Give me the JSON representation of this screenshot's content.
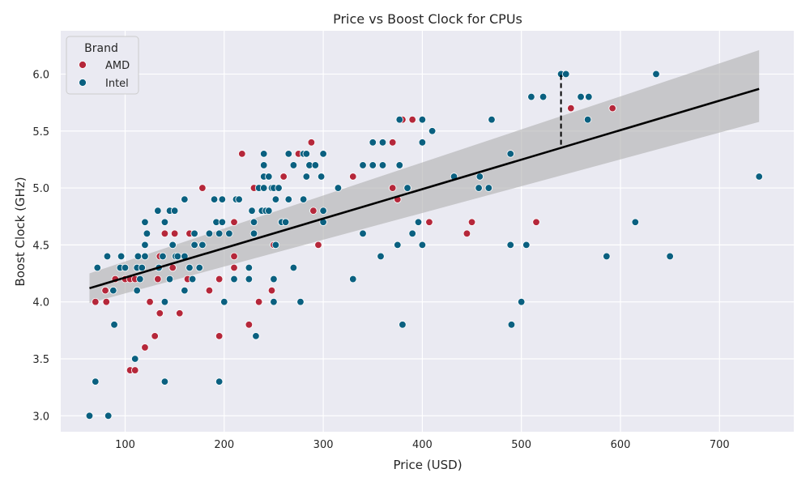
{
  "chart_data": {
    "type": "scatter",
    "title": "Price vs Boost Clock for CPUs",
    "xlabel": "Price (USD)",
    "ylabel": "Boost Clock (GHz)",
    "xlim": [
      35,
      775
    ],
    "ylim": [
      2.86,
      6.38
    ],
    "xticks": [
      100,
      200,
      300,
      400,
      500,
      600,
      700
    ],
    "yticks": [
      3.0,
      3.5,
      4.0,
      4.5,
      5.0,
      5.5,
      6.0
    ],
    "grid": true,
    "legend": {
      "title": "Brand",
      "position": "top-left"
    },
    "colors": {
      "AMD": "#b5273a",
      "Intel": "#0a6080",
      "fit": "#000000",
      "band": "#b3b3b3",
      "background": "#eaeaf2"
    },
    "series": [
      {
        "name": "AMD",
        "points": [
          [
            70,
            4.0
          ],
          [
            80,
            4.1
          ],
          [
            81,
            4.0
          ],
          [
            90,
            4.2
          ],
          [
            100,
            4.2
          ],
          [
            105,
            4.2
          ],
          [
            105,
            3.4
          ],
          [
            110,
            3.4
          ],
          [
            110,
            4.2
          ],
          [
            120,
            3.6
          ],
          [
            120,
            4.4
          ],
          [
            125,
            4.0
          ],
          [
            130,
            3.7
          ],
          [
            133,
            4.2
          ],
          [
            135,
            4.4
          ],
          [
            138,
            4.4
          ],
          [
            140,
            4.6
          ],
          [
            148,
            4.3
          ],
          [
            150,
            4.6
          ],
          [
            155,
            3.9
          ],
          [
            163,
            4.2
          ],
          [
            165,
            4.6
          ],
          [
            170,
            4.6
          ],
          [
            178,
            5.0
          ],
          [
            185,
            4.1
          ],
          [
            195,
            4.2
          ],
          [
            195,
            3.7
          ],
          [
            210,
            4.3
          ],
          [
            210,
            4.4
          ],
          [
            210,
            4.7
          ],
          [
            218,
            5.3
          ],
          [
            225,
            3.8
          ],
          [
            230,
            5.0
          ],
          [
            235,
            4.0
          ],
          [
            248,
            4.1
          ],
          [
            260,
            5.1
          ],
          [
            275,
            5.3
          ],
          [
            288,
            5.4
          ],
          [
            290,
            4.8
          ],
          [
            295,
            4.5
          ],
          [
            330,
            5.1
          ],
          [
            370,
            5.4
          ],
          [
            370,
            5.0
          ],
          [
            375,
            4.9
          ],
          [
            380,
            5.6
          ],
          [
            390,
            5.6
          ],
          [
            407,
            4.7
          ],
          [
            445,
            4.6
          ],
          [
            450,
            4.7
          ],
          [
            515,
            4.7
          ],
          [
            550,
            5.7
          ],
          [
            592,
            5.7
          ],
          [
            135,
            3.9
          ],
          [
            230,
            4.6
          ],
          [
            250,
            4.5
          ]
        ]
      },
      {
        "name": "Intel",
        "points": [
          [
            64,
            3.0
          ],
          [
            70,
            3.3
          ],
          [
            72,
            4.3
          ],
          [
            83,
            3.0
          ],
          [
            82,
            4.4
          ],
          [
            88,
            4.1
          ],
          [
            89,
            3.8
          ],
          [
            95,
            4.3
          ],
          [
            96,
            4.4
          ],
          [
            100,
            4.3
          ],
          [
            110,
            3.5
          ],
          [
            112,
            4.3
          ],
          [
            112,
            4.1
          ],
          [
            113,
            4.4
          ],
          [
            115,
            4.2
          ],
          [
            117,
            4.3
          ],
          [
            120,
            4.4
          ],
          [
            120,
            4.5
          ],
          [
            120,
            4.7
          ],
          [
            122,
            4.6
          ],
          [
            133,
            4.8
          ],
          [
            134,
            4.3
          ],
          [
            138,
            4.4
          ],
          [
            140,
            4.7
          ],
          [
            140,
            3.3
          ],
          [
            140,
            4.0
          ],
          [
            145,
            4.2
          ],
          [
            145,
            4.8
          ],
          [
            148,
            4.5
          ],
          [
            150,
            4.8
          ],
          [
            151,
            4.4
          ],
          [
            153,
            4.4
          ],
          [
            160,
            4.9
          ],
          [
            160,
            4.4
          ],
          [
            160,
            4.1
          ],
          [
            165,
            4.3
          ],
          [
            168,
            4.2
          ],
          [
            170,
            4.6
          ],
          [
            170,
            4.5
          ],
          [
            175,
            4.3
          ],
          [
            178,
            4.5
          ],
          [
            185,
            4.6
          ],
          [
            190,
            4.9
          ],
          [
            192,
            4.7
          ],
          [
            195,
            4.6
          ],
          [
            195,
            3.3
          ],
          [
            198,
            4.7
          ],
          [
            198,
            4.9
          ],
          [
            200,
            4.0
          ],
          [
            205,
            4.6
          ],
          [
            210,
            4.2
          ],
          [
            212,
            4.9
          ],
          [
            215,
            4.9
          ],
          [
            225,
            4.3
          ],
          [
            225,
            4.2
          ],
          [
            228,
            4.8
          ],
          [
            230,
            4.7
          ],
          [
            230,
            4.6
          ],
          [
            232,
            3.7
          ],
          [
            235,
            5.0
          ],
          [
            238,
            4.8
          ],
          [
            240,
            5.0
          ],
          [
            240,
            5.2
          ],
          [
            240,
            5.1
          ],
          [
            240,
            5.3
          ],
          [
            242,
            4.8
          ],
          [
            245,
            5.1
          ],
          [
            245,
            4.8
          ],
          [
            248,
            5.0
          ],
          [
            250,
            5.0
          ],
          [
            250,
            4.2
          ],
          [
            250,
            4.0
          ],
          [
            252,
            4.5
          ],
          [
            252,
            4.9
          ],
          [
            255,
            5.0
          ],
          [
            258,
            4.7
          ],
          [
            262,
            4.7
          ],
          [
            265,
            5.3
          ],
          [
            265,
            4.9
          ],
          [
            270,
            5.2
          ],
          [
            270,
            4.3
          ],
          [
            277,
            4.0
          ],
          [
            280,
            4.9
          ],
          [
            280,
            5.3
          ],
          [
            283,
            5.1
          ],
          [
            283,
            5.3
          ],
          [
            286,
            5.2
          ],
          [
            292,
            5.2
          ],
          [
            298,
            5.1
          ],
          [
            300,
            5.3
          ],
          [
            300,
            4.8
          ],
          [
            300,
            4.7
          ],
          [
            315,
            5.0
          ],
          [
            330,
            4.2
          ],
          [
            340,
            5.2
          ],
          [
            340,
            4.6
          ],
          [
            350,
            5.2
          ],
          [
            350,
            5.4
          ],
          [
            358,
            4.4
          ],
          [
            360,
            5.2
          ],
          [
            360,
            5.4
          ],
          [
            375,
            4.5
          ],
          [
            377,
            5.6
          ],
          [
            377,
            5.2
          ],
          [
            380,
            3.8
          ],
          [
            385,
            5.0
          ],
          [
            390,
            4.6
          ],
          [
            396,
            4.7
          ],
          [
            400,
            5.6
          ],
          [
            400,
            5.4
          ],
          [
            400,
            4.5
          ],
          [
            410,
            5.5
          ],
          [
            432,
            5.1
          ],
          [
            457,
            5.0
          ],
          [
            458,
            5.1
          ],
          [
            467,
            5.0
          ],
          [
            470,
            5.6
          ],
          [
            489,
            5.3
          ],
          [
            489,
            4.5
          ],
          [
            490,
            3.8
          ],
          [
            500,
            4.0
          ],
          [
            505,
            4.5
          ],
          [
            510,
            5.8
          ],
          [
            522,
            5.8
          ],
          [
            540,
            6.0
          ],
          [
            545,
            6.0
          ],
          [
            560,
            5.8
          ],
          [
            567,
            5.6
          ],
          [
            568,
            5.8
          ],
          [
            586,
            4.4
          ],
          [
            615,
            4.7
          ],
          [
            636,
            6.0
          ],
          [
            650,
            4.4
          ],
          [
            740,
            5.1
          ]
        ]
      }
    ],
    "regression": {
      "x": [
        64,
        740
      ],
      "y": [
        4.12,
        5.87
      ],
      "ci_left": [
        3.99,
        4.25
      ],
      "ci_right": [
        5.58,
        6.21
      ]
    },
    "annotation": {
      "type": "dashed-vertical",
      "x": 540,
      "y_from": 5.38,
      "y_to": 6.0
    }
  }
}
